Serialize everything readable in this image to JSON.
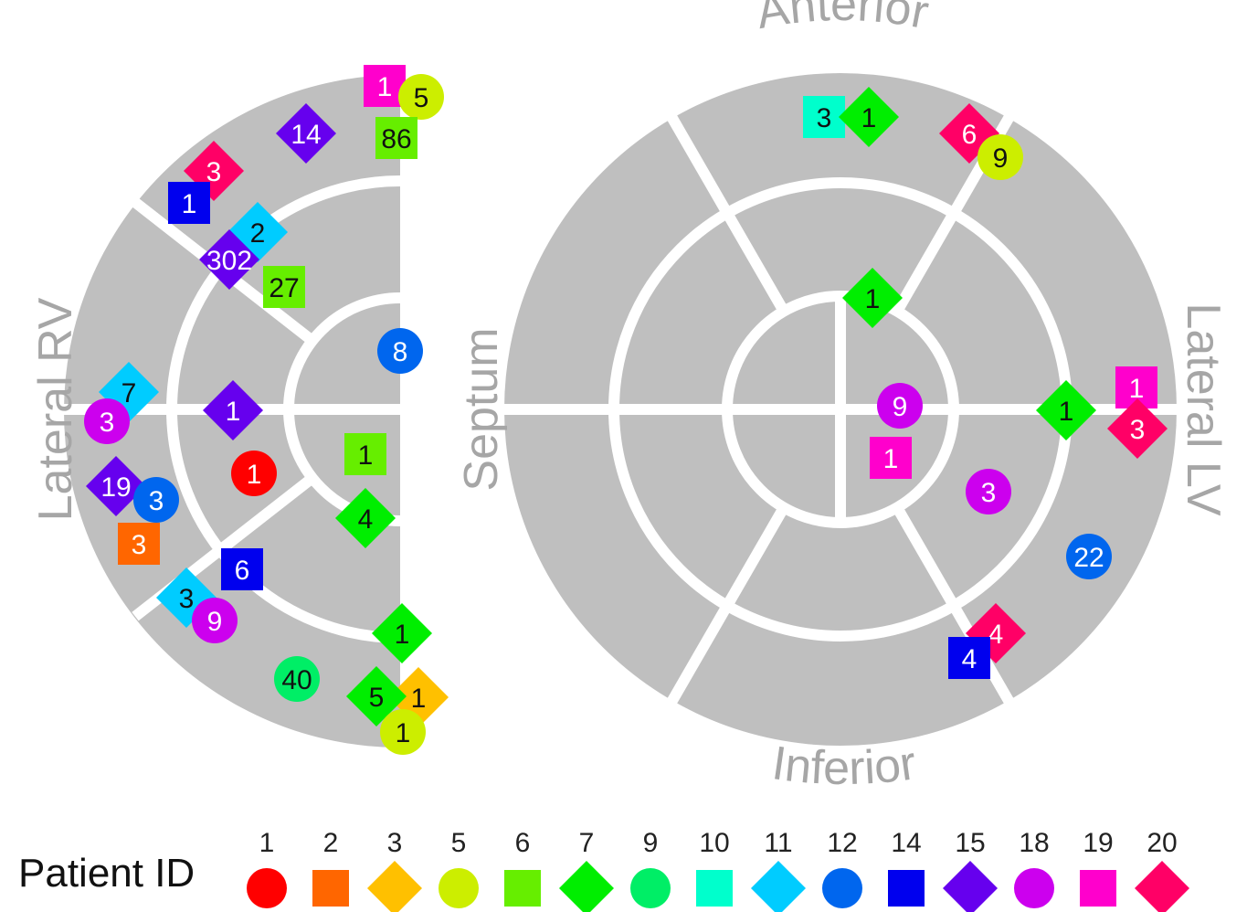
{
  "colors": {
    "segment_fill": "#bfbfbf",
    "separator": "#ffffff",
    "label": "#a6a6a6",
    "patients": {
      "1": "#ff0000",
      "2": "#ff6600",
      "3": "#ffc000",
      "5": "#ccee00",
      "6": "#66ee00",
      "7": "#00ee00",
      "9": "#00ee66",
      "10": "#00ffcc",
      "11": "#00ccff",
      "12": "#0066ee",
      "14": "#0000ee",
      "15": "#6600ee",
      "18": "#cc00ee",
      "19": "#ff00cc",
      "20": "#ff0066"
    }
  },
  "rv_labels": {
    "lateral_rv": "Lateral RV"
  },
  "lv_labels": {
    "anterior": "Anterior",
    "lateral_lv": "Lateral LV",
    "inferior": "Inferior",
    "septum": "Septum"
  },
  "legend": {
    "title": "Patient ID",
    "patients": [
      {
        "id": "1",
        "shape": "circle"
      },
      {
        "id": "2",
        "shape": "square"
      },
      {
        "id": "3",
        "shape": "diamond"
      },
      {
        "id": "5",
        "shape": "circle"
      },
      {
        "id": "6",
        "shape": "square"
      },
      {
        "id": "7",
        "shape": "diamond"
      },
      {
        "id": "9",
        "shape": "circle"
      },
      {
        "id": "10",
        "shape": "square"
      },
      {
        "id": "11",
        "shape": "diamond"
      },
      {
        "id": "12",
        "shape": "circle"
      },
      {
        "id": "14",
        "shape": "square"
      },
      {
        "id": "15",
        "shape": "diamond"
      },
      {
        "id": "18",
        "shape": "circle"
      },
      {
        "id": "19",
        "shape": "square"
      },
      {
        "id": "20",
        "shape": "diamond"
      }
    ]
  },
  "rv_markers": [
    {
      "patient": "19",
      "count": "1",
      "shape": "square"
    },
    {
      "patient": "5",
      "count": "5",
      "shape": "circle"
    },
    {
      "patient": "6",
      "count": "86",
      "shape": "square"
    },
    {
      "patient": "15",
      "count": "14",
      "shape": "diamond"
    },
    {
      "patient": "20",
      "count": "3",
      "shape": "diamond"
    },
    {
      "patient": "14",
      "count": "1",
      "shape": "square"
    },
    {
      "patient": "11",
      "count": "2",
      "shape": "diamond"
    },
    {
      "patient": "15",
      "count": "302",
      "shape": "diamond"
    },
    {
      "patient": "6",
      "count": "27",
      "shape": "square"
    },
    {
      "patient": "12",
      "count": "8",
      "shape": "circle"
    },
    {
      "patient": "11",
      "count": "7",
      "shape": "diamond"
    },
    {
      "patient": "18",
      "count": "3",
      "shape": "circle"
    },
    {
      "patient": "15",
      "count": "1",
      "shape": "diamond"
    },
    {
      "patient": "6",
      "count": "1",
      "shape": "square"
    },
    {
      "patient": "1",
      "count": "1",
      "shape": "circle"
    },
    {
      "patient": "15",
      "count": "19",
      "shape": "diamond"
    },
    {
      "patient": "12",
      "count": "3",
      "shape": "circle"
    },
    {
      "patient": "2",
      "count": "3",
      "shape": "square"
    },
    {
      "patient": "7",
      "count": "4",
      "shape": "diamond"
    },
    {
      "patient": "14",
      "count": "6",
      "shape": "square"
    },
    {
      "patient": "11",
      "count": "3",
      "shape": "diamond"
    },
    {
      "patient": "18",
      "count": "9",
      "shape": "circle"
    },
    {
      "patient": "7",
      "count": "1",
      "shape": "diamond"
    },
    {
      "patient": "9",
      "count": "40",
      "shape": "circle"
    },
    {
      "patient": "3",
      "count": "1",
      "shape": "diamond"
    },
    {
      "patient": "7",
      "count": "5",
      "shape": "diamond"
    },
    {
      "patient": "5",
      "count": "1",
      "shape": "circle"
    }
  ],
  "lv_markers": [
    {
      "patient": "10",
      "count": "3",
      "shape": "square"
    },
    {
      "patient": "7",
      "count": "1",
      "shape": "diamond"
    },
    {
      "patient": "20",
      "count": "6",
      "shape": "diamond"
    },
    {
      "patient": "5",
      "count": "9",
      "shape": "circle"
    },
    {
      "patient": "7",
      "count": "1",
      "shape": "diamond"
    },
    {
      "patient": "18",
      "count": "9",
      "shape": "circle"
    },
    {
      "patient": "19",
      "count": "1",
      "shape": "square"
    },
    {
      "patient": "18",
      "count": "3",
      "shape": "circle"
    },
    {
      "patient": "7",
      "count": "1",
      "shape": "diamond"
    },
    {
      "patient": "19",
      "count": "1",
      "shape": "square"
    },
    {
      "patient": "20",
      "count": "3",
      "shape": "diamond"
    },
    {
      "patient": "12",
      "count": "22",
      "shape": "circle"
    },
    {
      "patient": "20",
      "count": "4",
      "shape": "diamond"
    },
    {
      "patient": "14",
      "count": "4",
      "shape": "square"
    }
  ]
}
